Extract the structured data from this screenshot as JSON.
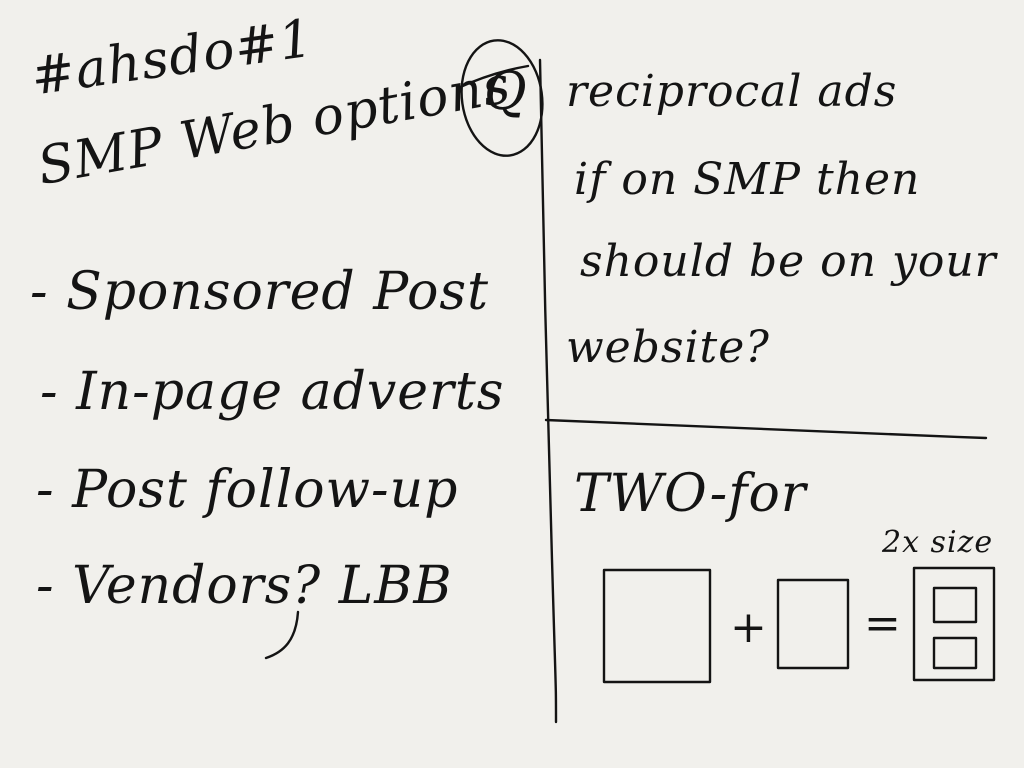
{
  "left_column": {
    "heading_line1": "#ahsdo#1",
    "heading_line2": "SMP Web options",
    "bullets": [
      "- Sponsored Post",
      "- In-page adverts",
      "- Post follow-up",
      "- Vendors? LBB"
    ]
  },
  "right_top": {
    "question_marker": "Q",
    "line1": "reciprocal ads",
    "line2": "if on SMP then",
    "line3": "should be on your",
    "line4": "website?"
  },
  "right_bottom": {
    "title": "TWO-for",
    "size_note": "2x size",
    "plus": "+",
    "equals": "="
  }
}
